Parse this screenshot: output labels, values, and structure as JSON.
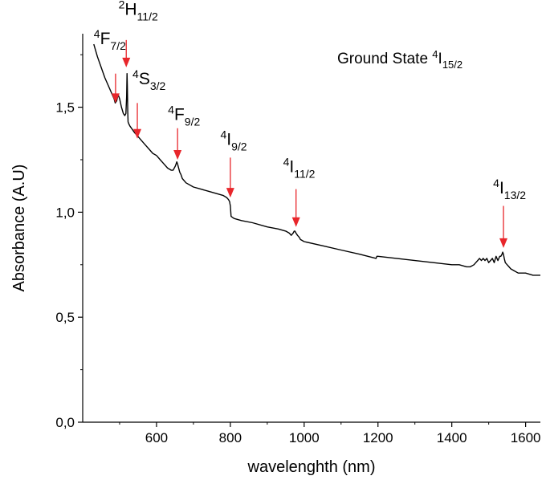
{
  "chart_data": {
    "type": "line",
    "title": "",
    "xlabel": "wavelenghth (nm)",
    "ylabel": "Absorbance (A.U)",
    "xlim": [
      400,
      1640
    ],
    "ylim": [
      0,
      1.85
    ],
    "xticks": [
      {
        "value": 600,
        "label": "600"
      },
      {
        "value": 800,
        "label": "800"
      },
      {
        "value": 1000,
        "label": "1000"
      },
      {
        "value": 1200,
        "label": "1200"
      },
      {
        "value": 1400,
        "label": "1400"
      },
      {
        "value": 1600,
        "label": "1600"
      }
    ],
    "yticks": [
      {
        "value": 0.0,
        "label": "0,0"
      },
      {
        "value": 0.5,
        "label": "0,5"
      },
      {
        "value": 1.0,
        "label": "1,0"
      },
      {
        "value": 1.5,
        "label": "1,5"
      }
    ],
    "grid": false,
    "line_color": "#000000",
    "arrow_color": "#e8262b",
    "state_label": {
      "prefix": "Ground State ",
      "sup": "4",
      "base": "I",
      "sub": "15/2"
    },
    "series": [
      {
        "x": [
          430,
          440,
          450,
          460,
          470,
          480,
          485,
          488,
          492,
          496,
          500,
          505,
          510,
          514,
          517,
          519,
          520,
          521,
          522,
          523,
          525,
          528,
          532,
          540,
          550,
          560,
          570,
          580,
          590,
          600,
          610,
          620,
          630,
          640,
          645,
          648,
          651,
          653,
          655,
          657,
          660,
          663,
          666,
          670,
          680,
          700,
          720,
          740,
          760,
          780,
          790,
          795,
          798,
          799,
          800,
          802,
          810,
          830,
          860,
          900,
          930,
          950,
          960,
          965,
          970,
          973,
          975,
          978,
          982,
          987,
          990,
          1000,
          1050,
          1100,
          1150,
          1195,
          1197,
          1200,
          1250,
          1300,
          1350,
          1400,
          1420,
          1440,
          1450,
          1460,
          1465,
          1470,
          1475,
          1480,
          1485,
          1490,
          1495,
          1500,
          1505,
          1510,
          1515,
          1520,
          1525,
          1530,
          1533,
          1536,
          1538,
          1540,
          1542,
          1545,
          1550,
          1555,
          1560,
          1570,
          1580,
          1600,
          1620,
          1640
        ],
        "y": [
          1.8,
          1.74,
          1.69,
          1.64,
          1.6,
          1.56,
          1.54,
          1.52,
          1.53,
          1.56,
          1.54,
          1.5,
          1.47,
          1.46,
          1.47,
          1.55,
          1.66,
          1.6,
          1.48,
          1.43,
          1.42,
          1.41,
          1.4,
          1.38,
          1.36,
          1.34,
          1.32,
          1.3,
          1.28,
          1.27,
          1.25,
          1.23,
          1.21,
          1.2,
          1.2,
          1.21,
          1.22,
          1.23,
          1.24,
          1.23,
          1.21,
          1.19,
          1.18,
          1.16,
          1.14,
          1.12,
          1.11,
          1.1,
          1.09,
          1.08,
          1.07,
          1.06,
          1.05,
          1.04,
          1.03,
          0.98,
          0.97,
          0.96,
          0.95,
          0.93,
          0.92,
          0.91,
          0.9,
          0.89,
          0.9,
          0.91,
          0.91,
          0.9,
          0.89,
          0.88,
          0.87,
          0.86,
          0.84,
          0.82,
          0.8,
          0.78,
          0.79,
          0.79,
          0.78,
          0.77,
          0.76,
          0.75,
          0.75,
          0.74,
          0.74,
          0.75,
          0.76,
          0.77,
          0.78,
          0.77,
          0.78,
          0.77,
          0.78,
          0.76,
          0.77,
          0.78,
          0.76,
          0.79,
          0.77,
          0.79,
          0.79,
          0.8,
          0.81,
          0.8,
          0.78,
          0.76,
          0.75,
          0.74,
          0.73,
          0.72,
          0.71,
          0.71,
          0.7,
          0.7
        ]
      }
    ],
    "annotations": [
      {
        "sup": "4",
        "base": "F",
        "sub": "7/2",
        "arrow_x": 489,
        "arrow_top": 1.66,
        "arrow_bottom": 1.52,
        "label_x": 430,
        "label_y": 1.8
      },
      {
        "sup": "2",
        "base": "H",
        "sub": "11/2",
        "arrow_x": 518,
        "arrow_top": 1.82,
        "arrow_bottom": 1.69,
        "label_x": 497,
        "label_y": 1.94
      },
      {
        "sup": "4",
        "base": "S",
        "sub": "3/2",
        "arrow_x": 548,
        "arrow_top": 1.52,
        "arrow_bottom": 1.35,
        "label_x": 535,
        "label_y": 1.61
      },
      {
        "sup": "4",
        "base": "F",
        "sub": "9/2",
        "arrow_x": 657,
        "arrow_top": 1.4,
        "arrow_bottom": 1.25,
        "label_x": 631,
        "label_y": 1.44
      },
      {
        "sup": "4",
        "base": "I",
        "sub": "9/2",
        "arrow_x": 800,
        "arrow_top": 1.26,
        "arrow_bottom": 1.07,
        "label_x": 773,
        "label_y": 1.32
      },
      {
        "sup": "4",
        "base": "I",
        "sub": "11/2",
        "arrow_x": 978,
        "arrow_top": 1.11,
        "arrow_bottom": 0.93,
        "label_x": 943,
        "label_y": 1.19
      },
      {
        "sup": "4",
        "base": "I",
        "sub": "13/2",
        "arrow_x": 1540,
        "arrow_top": 1.03,
        "arrow_bottom": 0.83,
        "label_x": 1512,
        "label_y": 1.09
      }
    ]
  }
}
